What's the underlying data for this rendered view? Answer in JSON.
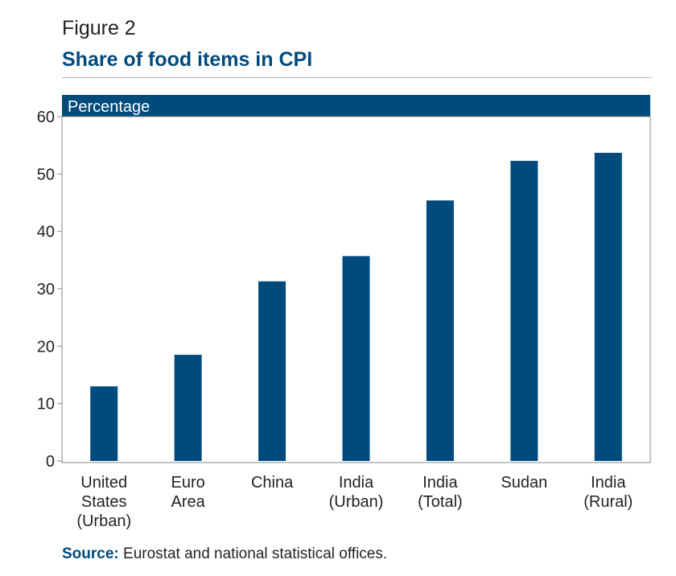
{
  "figure": {
    "label": "Figure 2",
    "title": "Share of food items in CPI"
  },
  "colors": {
    "bar": "#004b7c",
    "header_band": "#004b7c",
    "title": "#00497b",
    "text": "#231f20",
    "axis": "#8a8a8a"
  },
  "chart_data": {
    "type": "bar",
    "unit_label": "Percentage",
    "categories": [
      [
        "United",
        "States",
        "(Urban)"
      ],
      [
        "Euro",
        "Area"
      ],
      [
        "China"
      ],
      [
        "India",
        "(Urban)"
      ],
      [
        "India",
        "(Total)"
      ],
      [
        "Sudan"
      ],
      [
        "India",
        "(Rural)"
      ]
    ],
    "values": [
      13,
      18.5,
      31.3,
      35.7,
      45.4,
      52.3,
      53.7
    ],
    "ylim": [
      0,
      60
    ],
    "yticks": [
      0,
      10,
      20,
      30,
      40,
      50,
      60
    ],
    "grid": false,
    "legend": "none"
  },
  "source": {
    "label": "Source:",
    "text": " Eurostat and national statistical offices."
  }
}
